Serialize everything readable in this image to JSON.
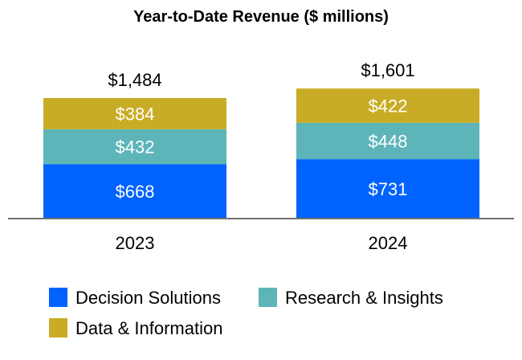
{
  "chart_data": {
    "type": "bar",
    "stacked": true,
    "title": "Year-to-Date Revenue ($ millions)",
    "categories": [
      "2023",
      "2024"
    ],
    "series": [
      {
        "name": "Decision Solutions",
        "values": [
          668,
          731
        ],
        "labels": [
          "$668",
          "$731"
        ],
        "color": "#0062FF"
      },
      {
        "name": "Research & Insights",
        "values": [
          432,
          448
        ],
        "labels": [
          "$432",
          "$448"
        ],
        "color": "#5DB5BA"
      },
      {
        "name": "Data & Information",
        "values": [
          384,
          422
        ],
        "labels": [
          "$384",
          "$422"
        ],
        "color": "#C9AC25"
      }
    ],
    "totals": [
      1484,
      1601
    ],
    "total_labels": [
      "$1,484",
      "$1,601"
    ],
    "xlabel": "",
    "ylabel": "",
    "grid": false,
    "legend_position": "bottom"
  }
}
